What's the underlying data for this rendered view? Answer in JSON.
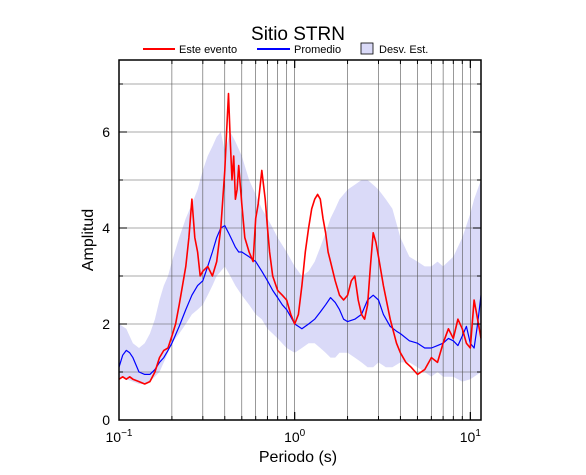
{
  "chart_data": {
    "type": "line",
    "title": "Sitio STRN",
    "xlabel": "Periodo (s)",
    "ylabel": "Amplitud",
    "x_scale": "log",
    "xlim": [
      0.1,
      11.5
    ],
    "ylim": [
      0,
      7.5
    ],
    "grid": true,
    "legend_position": "top",
    "x_ticks": [
      {
        "value": 0.1,
        "base": "10",
        "exp": "−1"
      },
      {
        "value": 1,
        "base": "10",
        "exp": "0"
      },
      {
        "value": 10,
        "base": "10",
        "exp": "1"
      }
    ],
    "y_ticks": [
      0,
      2,
      4,
      6
    ],
    "legend": [
      {
        "label": "Este evento",
        "kind": "line",
        "color": "#ff0000"
      },
      {
        "label": "Promedio",
        "kind": "line",
        "color": "#0000ff"
      },
      {
        "label": "Desv. Est.",
        "kind": "box",
        "color": "#dadaf8"
      }
    ],
    "band": {
      "name": "Desv. Est.",
      "color": "#dadaf8",
      "x": [
        0.1,
        0.11,
        0.12,
        0.13,
        0.14,
        0.15,
        0.16,
        0.17,
        0.18,
        0.19,
        0.2,
        0.22,
        0.24,
        0.26,
        0.28,
        0.3,
        0.32,
        0.34,
        0.36,
        0.38,
        0.4,
        0.43,
        0.46,
        0.5,
        0.55,
        0.6,
        0.65,
        0.7,
        0.75,
        0.8,
        0.9,
        1.0,
        1.1,
        1.2,
        1.3,
        1.4,
        1.5,
        1.6,
        1.7,
        1.8,
        2.0,
        2.2,
        2.4,
        2.6,
        2.8,
        3.0,
        3.3,
        3.6,
        4.0,
        4.5,
        5.0,
        5.5,
        6.0,
        6.5,
        7.0,
        8.0,
        9.0,
        10.0,
        10.5,
        11.5
      ],
      "upper": [
        2.0,
        1.9,
        1.6,
        1.5,
        1.6,
        1.8,
        2.1,
        2.5,
        2.8,
        3.0,
        3.3,
        3.8,
        4.2,
        4.5,
        4.8,
        5.2,
        5.5,
        5.7,
        5.9,
        6.0,
        5.6,
        6.0,
        5.8,
        5.5,
        5.0,
        4.7,
        4.4,
        4.2,
        4.0,
        3.8,
        3.5,
        3.2,
        3.0,
        3.1,
        3.3,
        3.6,
        3.9,
        4.2,
        4.4,
        4.6,
        4.8,
        4.9,
        5.0,
        5.0,
        4.9,
        4.8,
        4.6,
        4.4,
        3.8,
        3.4,
        3.3,
        3.2,
        3.2,
        3.3,
        3.2,
        3.4,
        3.8,
        4.3,
        4.6,
        5.0
      ],
      "lower": [
        0.9,
        0.85,
        0.8,
        0.75,
        0.75,
        0.8,
        0.9,
        1.0,
        1.2,
        1.4,
        1.6,
        1.8,
        2.0,
        2.2,
        2.3,
        2.4,
        2.6,
        2.8,
        3.0,
        3.1,
        3.2,
        3.0,
        2.8,
        2.6,
        2.4,
        2.2,
        2.1,
        1.9,
        1.8,
        1.7,
        1.5,
        1.4,
        1.5,
        1.6,
        1.6,
        1.5,
        1.4,
        1.3,
        1.3,
        1.4,
        1.4,
        1.3,
        1.2,
        1.1,
        1.1,
        1.2,
        1.1,
        1.1,
        1.2,
        1.2,
        1.1,
        1.0,
        0.9,
        1.0,
        0.9,
        0.9,
        0.8,
        0.85,
        0.9,
        1.0
      ]
    },
    "series": [
      {
        "name": "Promedio",
        "color": "#0000ff",
        "x": [
          0.1,
          0.105,
          0.11,
          0.115,
          0.12,
          0.13,
          0.14,
          0.15,
          0.16,
          0.17,
          0.18,
          0.19,
          0.2,
          0.22,
          0.24,
          0.26,
          0.28,
          0.3,
          0.32,
          0.34,
          0.36,
          0.38,
          0.4,
          0.42,
          0.44,
          0.46,
          0.48,
          0.5,
          0.55,
          0.6,
          0.65,
          0.7,
          0.75,
          0.8,
          0.85,
          0.9,
          0.95,
          1.0,
          1.05,
          1.1,
          1.2,
          1.3,
          1.4,
          1.5,
          1.6,
          1.7,
          1.8,
          1.9,
          2.0,
          2.2,
          2.4,
          2.6,
          2.8,
          3.0,
          3.2,
          3.5,
          3.8,
          4.0,
          4.5,
          5.0,
          5.5,
          6.0,
          6.5,
          7.0,
          7.5,
          8.0,
          8.5,
          9.0,
          9.5,
          10.0,
          10.5,
          11.0,
          11.5
        ],
        "y": [
          1.1,
          1.35,
          1.45,
          1.4,
          1.3,
          1.0,
          0.95,
          0.95,
          1.05,
          1.2,
          1.3,
          1.45,
          1.6,
          1.95,
          2.3,
          2.6,
          2.8,
          2.9,
          3.2,
          3.5,
          3.8,
          4.0,
          4.05,
          3.9,
          3.75,
          3.6,
          3.5,
          3.5,
          3.4,
          3.3,
          3.1,
          2.9,
          2.7,
          2.55,
          2.4,
          2.3,
          2.15,
          2.0,
          1.95,
          1.9,
          2.0,
          2.1,
          2.25,
          2.4,
          2.55,
          2.45,
          2.3,
          2.1,
          2.05,
          2.1,
          2.2,
          2.5,
          2.6,
          2.5,
          2.2,
          1.95,
          1.85,
          1.8,
          1.65,
          1.6,
          1.5,
          1.5,
          1.55,
          1.6,
          1.7,
          1.65,
          1.55,
          1.75,
          1.95,
          1.6,
          1.5,
          2.0,
          2.6
        ]
      },
      {
        "name": "Este evento",
        "color": "#ff0000",
        "x": [
          0.1,
          0.105,
          0.11,
          0.115,
          0.12,
          0.13,
          0.14,
          0.15,
          0.16,
          0.17,
          0.18,
          0.19,
          0.2,
          0.21,
          0.22,
          0.23,
          0.24,
          0.25,
          0.26,
          0.27,
          0.28,
          0.29,
          0.3,
          0.32,
          0.34,
          0.36,
          0.38,
          0.4,
          0.41,
          0.42,
          0.43,
          0.44,
          0.45,
          0.46,
          0.47,
          0.48,
          0.5,
          0.52,
          0.55,
          0.58,
          0.6,
          0.62,
          0.65,
          0.68,
          0.7,
          0.72,
          0.75,
          0.8,
          0.85,
          0.9,
          0.95,
          1.0,
          1.05,
          1.1,
          1.15,
          1.2,
          1.25,
          1.3,
          1.35,
          1.4,
          1.45,
          1.5,
          1.55,
          1.6,
          1.7,
          1.8,
          1.9,
          2.0,
          2.1,
          2.2,
          2.3,
          2.4,
          2.5,
          2.6,
          2.7,
          2.8,
          2.9,
          3.0,
          3.2,
          3.5,
          3.8,
          4.0,
          4.3,
          4.6,
          5.0,
          5.5,
          6.0,
          6.5,
          7.0,
          7.5,
          8.0,
          8.5,
          9.0,
          9.5,
          10.0,
          10.5,
          11.0,
          11.5
        ],
        "y": [
          0.85,
          0.9,
          0.85,
          0.9,
          0.85,
          0.8,
          0.75,
          0.8,
          1.0,
          1.3,
          1.45,
          1.5,
          1.75,
          2.0,
          2.4,
          2.8,
          3.2,
          3.8,
          4.6,
          3.8,
          3.5,
          3.0,
          3.1,
          3.2,
          3.0,
          3.3,
          4.0,
          5.2,
          6.0,
          6.8,
          5.8,
          5.0,
          5.5,
          4.6,
          4.8,
          5.3,
          4.5,
          3.8,
          3.5,
          3.3,
          4.2,
          4.5,
          5.2,
          4.6,
          4.0,
          3.5,
          3.0,
          2.7,
          2.6,
          2.5,
          2.2,
          2.0,
          2.2,
          2.8,
          3.5,
          4.0,
          4.4,
          4.6,
          4.7,
          4.6,
          4.2,
          3.9,
          3.5,
          3.3,
          2.9,
          2.6,
          2.5,
          2.6,
          2.9,
          3.0,
          2.5,
          2.2,
          2.1,
          2.4,
          3.2,
          3.9,
          3.7,
          3.4,
          2.8,
          2.1,
          1.6,
          1.4,
          1.2,
          1.1,
          0.95,
          1.05,
          1.3,
          1.2,
          1.6,
          1.9,
          1.7,
          2.1,
          1.9,
          1.6,
          1.5,
          2.5,
          2.1,
          1.7
        ]
      }
    ]
  }
}
